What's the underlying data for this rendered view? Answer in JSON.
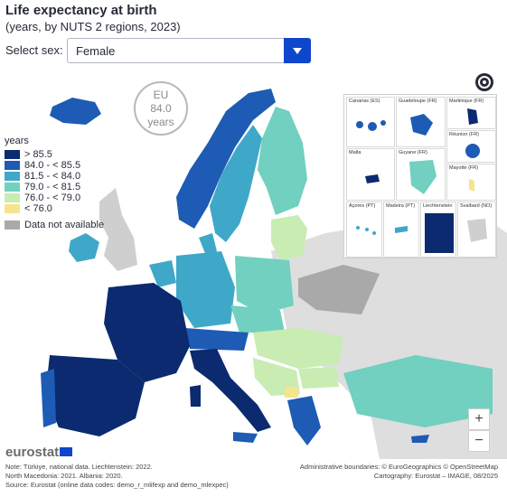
{
  "header": {
    "title": "Life expectancy at birth",
    "subtitle": "(years, by NUTS 2 regions, 2023)"
  },
  "controls": {
    "sex_label": "Select sex:",
    "sex_value": "Female"
  },
  "eu_badge": {
    "line1": "EU",
    "value": "84.0",
    "unit": "years"
  },
  "legend": {
    "title": "years",
    "classes": [
      {
        "label": "> 85.5",
        "color": "#0b2a6f"
      },
      {
        "label": "84.0 - < 85.5",
        "color": "#1d5bb5"
      },
      {
        "label": "81.5 - < 84.0",
        "color": "#3fa8c9"
      },
      {
        "label": "79.0 - < 81.5",
        "color": "#71d0bf"
      },
      {
        "label": "76.0 - < 79.0",
        "color": "#c8ecb2"
      },
      {
        "label": "< 76.0",
        "color": "#f6e38e"
      }
    ],
    "na_label": "Data not available",
    "na_color": "#a9a9a9"
  },
  "insets": {
    "canarias": "Canarias (ES)",
    "guadeloupe": "Guadeloupe (FR)",
    "martinique": "Martinique (FR)",
    "reunion": "Réunion (FR)",
    "malta": "Malta",
    "guyane": "Guyane (FR)",
    "mayotte": "Mayotte (FR)",
    "acores": "Açores (PT)",
    "madeira": "Madeira (PT)",
    "liechtenstein": "Liechtenstein",
    "svalbard": "Svalbard (NO)"
  },
  "zoom": {
    "in": "+",
    "out": "−"
  },
  "footer": {
    "logo": "eurostat",
    "note1": "Note: Türkiye, national data. Liechtenstein: 2022.",
    "note2": "North Macedonia: 2021. Albania: 2020.",
    "source": "Source: Eurostat (online data codes: demo_r_mlifexp and demo_mlexpec)",
    "admin": "Administrative boundaries: © EuroGeographics © OpenStreetMap",
    "carto": "Cartography: Eurostat – IMAGE, 08/2025"
  },
  "icons": [
    "chevron-down-icon",
    "settings-icon",
    "eu-flag-icon"
  ]
}
